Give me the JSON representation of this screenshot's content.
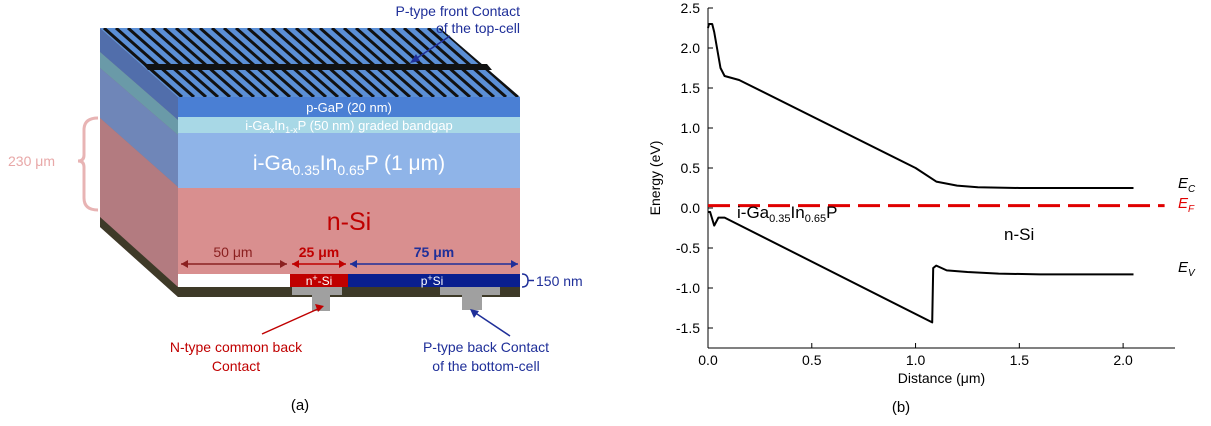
{
  "panel_a": {
    "caption": "(a)",
    "thickness_label": "230 μm",
    "labels": {
      "front_contact_line1": "P-type front Contact",
      "front_contact_line2": "of the top-cell",
      "p_gap": "p-GaP (20 nm)",
      "graded_base": "i-Ga",
      "graded_x": "x",
      "graded_in": "In",
      "graded_1x": "1-x",
      "graded_rest": "P (50 nm) graded bandgap",
      "gainp_base": "i-Ga",
      "gainp_sub1": "0.35",
      "gainp_in": "In",
      "gainp_sub2": "0.65",
      "gainp_rest": "P (1 μm)",
      "nsi": "n-Si",
      "dim_50": "50 μm",
      "dim_25": "25 μm",
      "dim_75": "75 μm",
      "nplus_pre": "n",
      "nplus_sup": "+",
      "nplus_post": "-Si",
      "pplus_pre": "p",
      "pplus_sup": "+",
      "pplus_post": "Si",
      "dim_150": "150 nm",
      "n_back_line1": "N-type common back",
      "n_back_line2": "Contact",
      "p_back_line1": "P-type back Contact",
      "p_back_line2": "of the bottom-cell"
    },
    "colors": {
      "p_gap": "#4a7fd4",
      "graded": "#a8d8e6",
      "gainp": "#8fb4e8",
      "nsi": "#d98f8f",
      "nplus": "#c00000",
      "pplus": "#0a1f8f",
      "text_red": "#c00000",
      "text_blue": "#1f2f99",
      "brace": "#e8b4b4"
    }
  },
  "panel_b": {
    "caption": "(b)",
    "xlabel": "Distance (μm)",
    "ylabel": "Energy (eV)",
    "annotation_gainp_base": "i-Ga",
    "annotation_gainp_sub1": "0.35",
    "annotation_gainp_in": "In",
    "annotation_gainp_sub2": "0.65",
    "annotation_gainp_rest": "P",
    "annotation_nsi": "n-Si",
    "label_ec": "E",
    "label_ec_sub": "C",
    "label_ef": "E",
    "label_ef_sub": "F",
    "label_ev": "E",
    "label_ev_sub": "V"
  },
  "chart_data": {
    "type": "line",
    "xlabel": "Distance (μm)",
    "ylabel": "Energy (eV)",
    "xlim": [
      0,
      2.25
    ],
    "ylim": [
      -1.75,
      2.5
    ],
    "xticks": [
      "0.0",
      "0.5",
      "1.0",
      "1.5",
      "2.0"
    ],
    "xtick_values": [
      0.0,
      0.5,
      1.0,
      1.5,
      2.0
    ],
    "yticks": [
      "2.5",
      "2.0",
      "1.5",
      "1.0",
      "0.5",
      "0.0",
      "-0.5",
      "-1.0",
      "-1.5"
    ],
    "ytick_values": [
      2.5,
      2.0,
      1.5,
      1.0,
      0.5,
      0.0,
      -0.5,
      -1.0,
      -1.5
    ],
    "series": [
      {
        "name": "E_C",
        "color": "#000000",
        "dash": false,
        "x": [
          0.0,
          0.005,
          0.02,
          0.03,
          0.06,
          0.08,
          0.15,
          1.0,
          1.1,
          1.2,
          1.3,
          1.5,
          2.05
        ],
        "y": [
          2.25,
          2.3,
          2.3,
          2.2,
          1.75,
          1.65,
          1.6,
          0.5,
          0.33,
          0.28,
          0.26,
          0.25,
          0.25
        ]
      },
      {
        "name": "E_F",
        "color": "#e00000",
        "dash": true,
        "x": [
          0.0,
          2.2
        ],
        "y": [
          0.03,
          0.03
        ]
      },
      {
        "name": "E_V",
        "color": "#000000",
        "dash": false,
        "x": [
          0.0,
          0.01,
          0.03,
          0.05,
          0.08,
          1.08,
          1.085,
          1.1,
          1.15,
          1.25,
          1.4,
          1.6,
          2.05
        ],
        "y": [
          -0.05,
          -0.05,
          -0.22,
          -0.12,
          -0.12,
          -1.43,
          -0.75,
          -0.72,
          -0.78,
          -0.8,
          -0.82,
          -0.83,
          -0.83
        ]
      }
    ]
  }
}
